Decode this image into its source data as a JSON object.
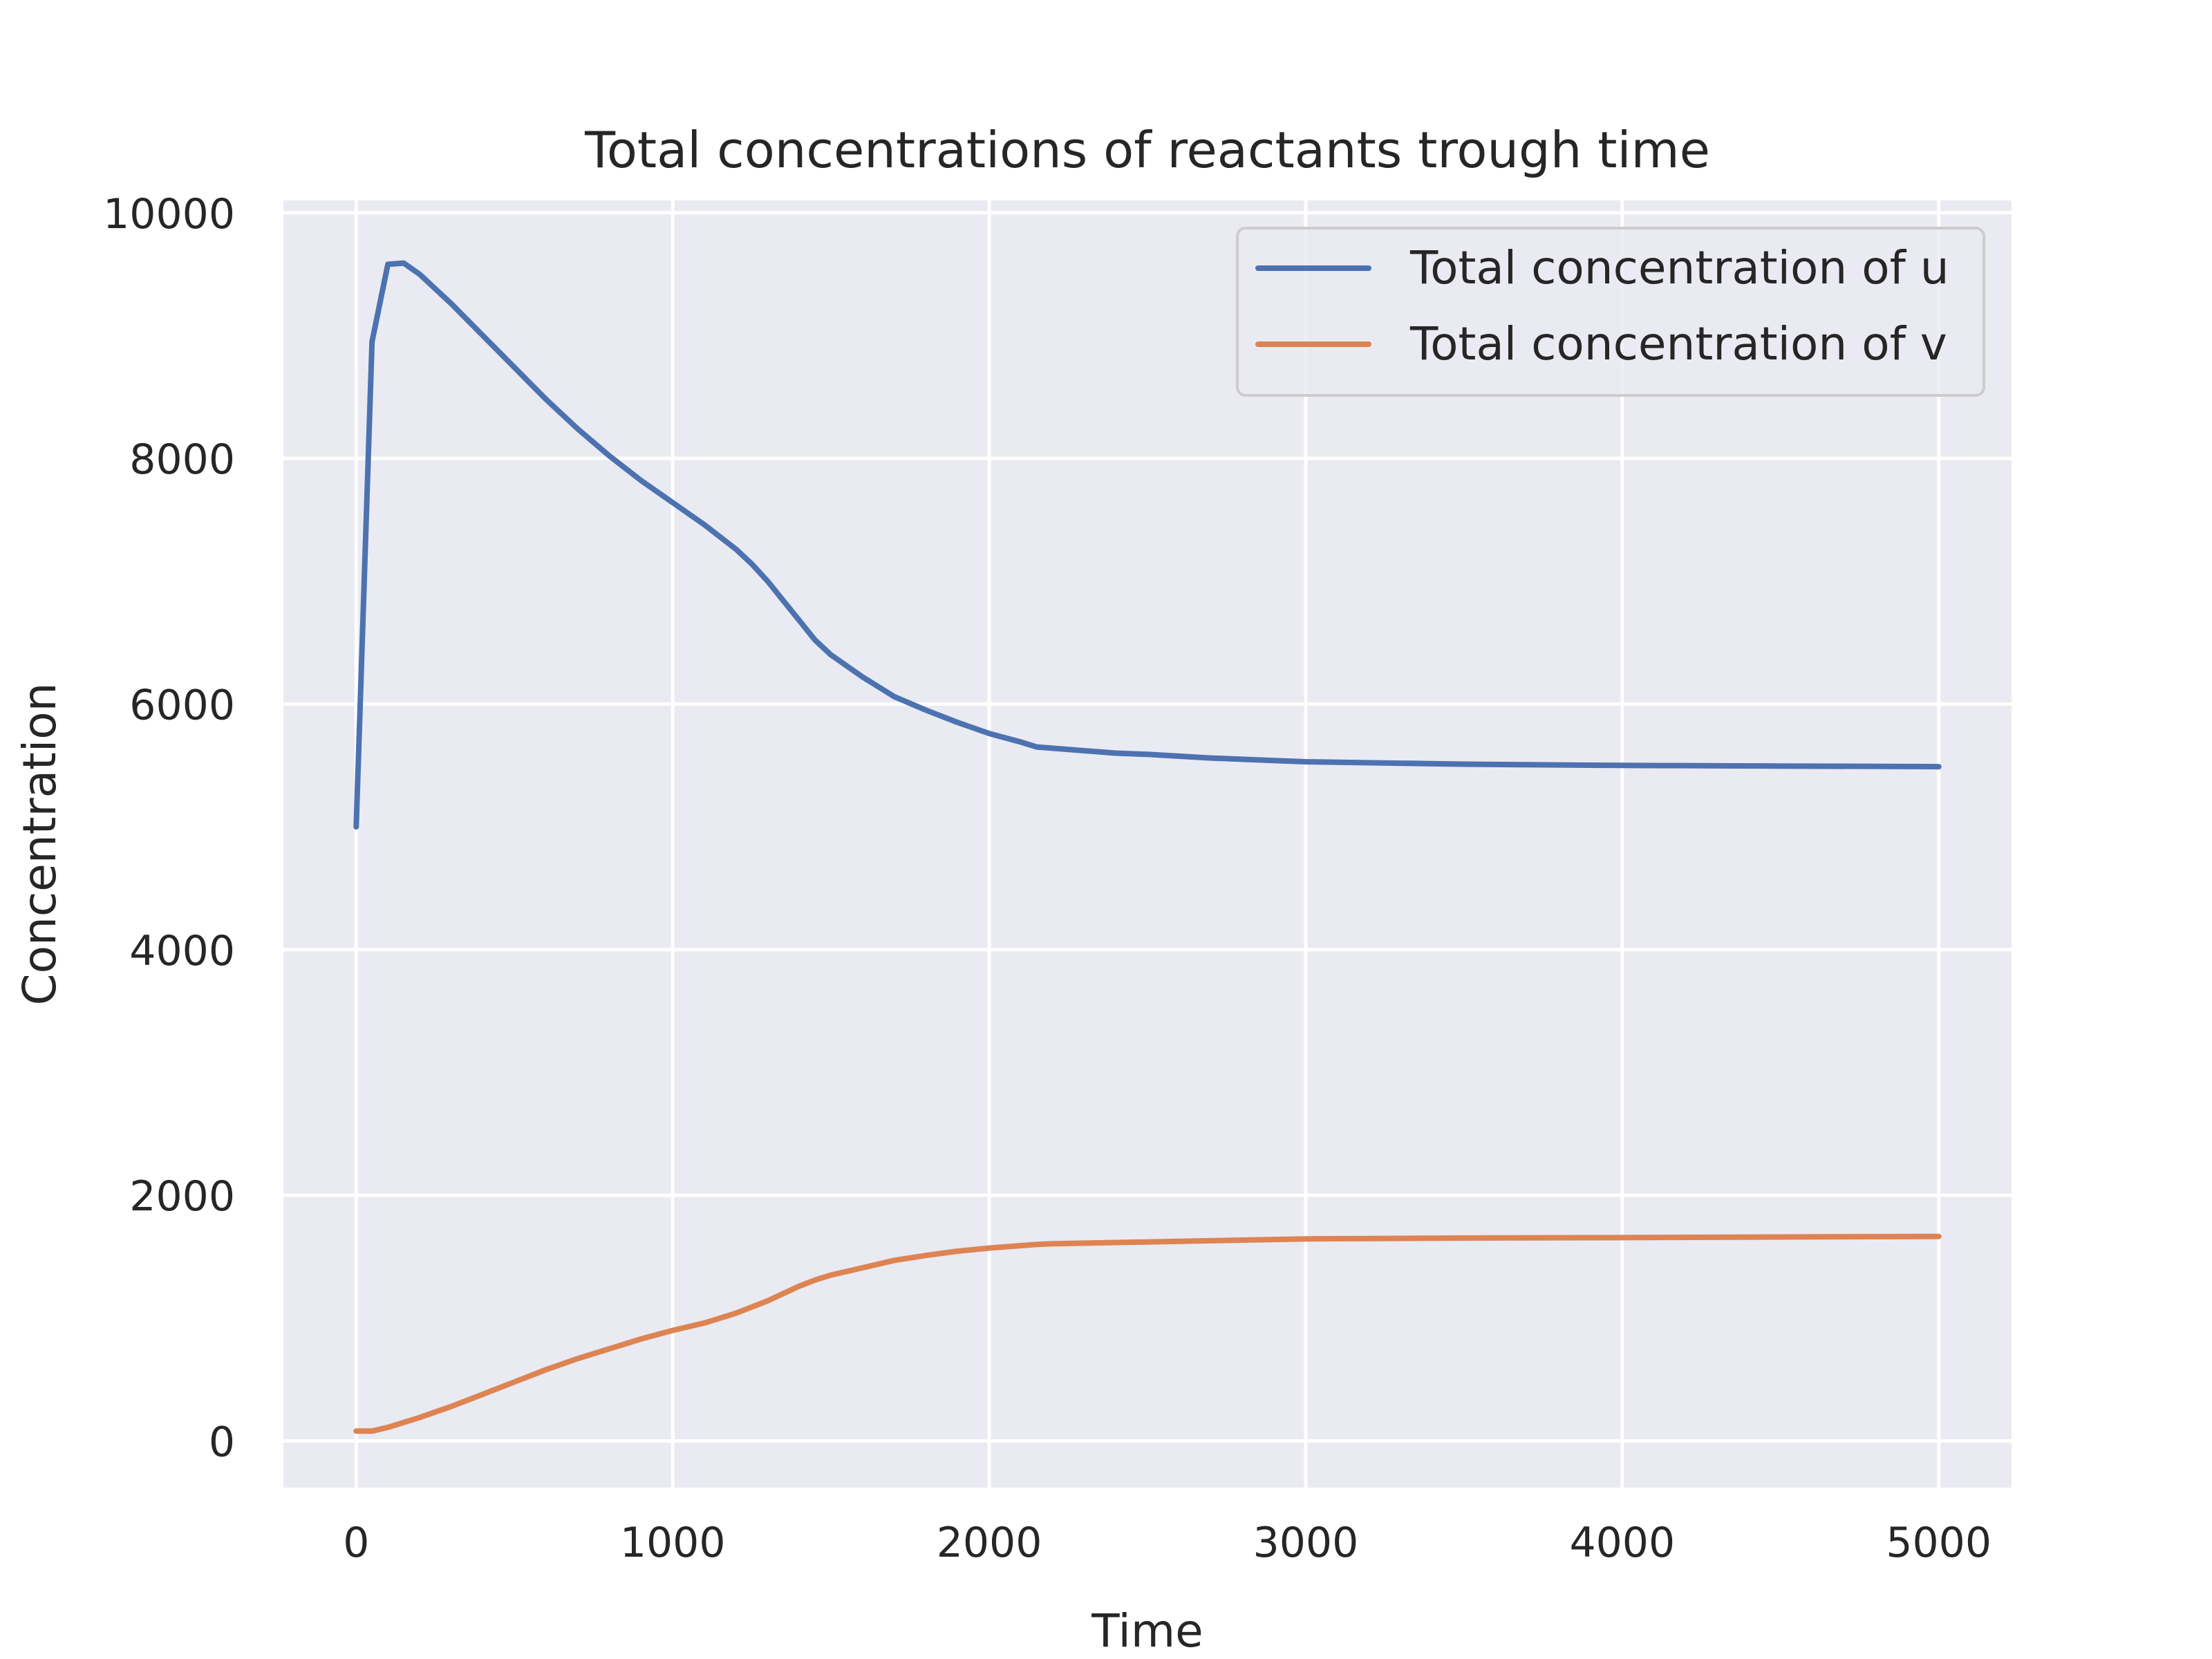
{
  "chart_data": {
    "type": "line",
    "title": "Total concentrations of reactants trough time",
    "xlabel": "Time",
    "ylabel": "Concentration",
    "xlim": [
      -230,
      5230
    ],
    "ylim": [
      -380,
      10100
    ],
    "xticks": [
      0,
      1000,
      2000,
      3000,
      4000,
      5000
    ],
    "yticks": [
      0,
      2000,
      4000,
      6000,
      8000,
      10000
    ],
    "grid": true,
    "legend_position": "upper right",
    "colors": {
      "background": "#EAEAF2",
      "grid": "#FFFFFF",
      "u": "#4C72B0",
      "v": "#DD8452"
    },
    "series": [
      {
        "name": "Total concentration of u",
        "color": "#4C72B0",
        "x": [
          0,
          50,
          100,
          150,
          200,
          300,
          400,
          500,
          600,
          700,
          800,
          900,
          1000,
          1100,
          1200,
          1250,
          1300,
          1350,
          1400,
          1450,
          1500,
          1600,
          1700,
          1800,
          1900,
          2000,
          2100,
          2150,
          2200,
          2300,
          2400,
          2500,
          2700,
          2900,
          3000,
          3500,
          4000,
          4500,
          5000
        ],
        "y": [
          5000,
          8950,
          9580,
          9590,
          9500,
          9260,
          9000,
          8740,
          8480,
          8240,
          8020,
          7820,
          7640,
          7460,
          7260,
          7140,
          7000,
          6840,
          6680,
          6520,
          6400,
          6220,
          6060,
          5950,
          5850,
          5760,
          5690,
          5650,
          5640,
          5620,
          5600,
          5590,
          5560,
          5540,
          5530,
          5510,
          5500,
          5495,
          5490
        ]
      },
      {
        "name": "Total concentration of v",
        "color": "#DD8452",
        "x": [
          0,
          50,
          100,
          200,
          300,
          400,
          500,
          600,
          700,
          800,
          900,
          1000,
          1100,
          1200,
          1300,
          1400,
          1450,
          1500,
          1600,
          1700,
          1800,
          1900,
          2000,
          2100,
          2150,
          2200,
          2400,
          2600,
          2800,
          3000,
          3500,
          4000,
          4500,
          5000
        ],
        "y": [
          80,
          80,
          110,
          190,
          280,
          380,
          480,
          580,
          670,
          750,
          830,
          900,
          960,
          1040,
          1140,
          1260,
          1310,
          1350,
          1410,
          1470,
          1510,
          1545,
          1570,
          1590,
          1600,
          1605,
          1615,
          1625,
          1635,
          1645,
          1652,
          1655,
          1660,
          1665
        ]
      }
    ]
  }
}
